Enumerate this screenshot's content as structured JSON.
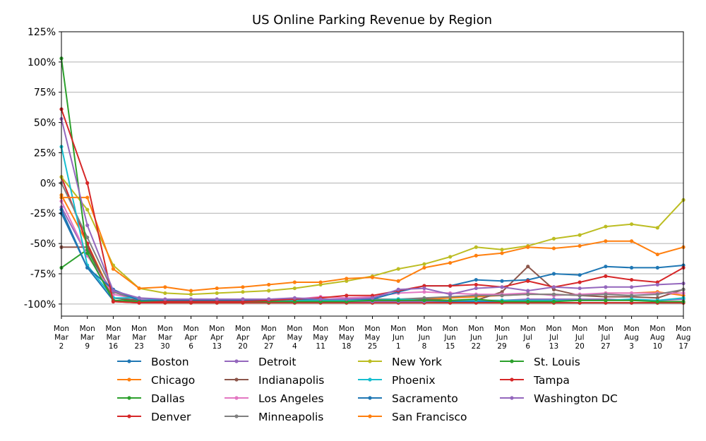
{
  "chart_data": {
    "type": "line",
    "title": "US Online Parking Revenue by Region",
    "xlabel": "",
    "ylabel": "",
    "ylim": [
      -110,
      125
    ],
    "y_ticks": [
      "125%",
      "100%",
      "75%",
      "50%",
      "25%",
      "0%",
      "-25%",
      "-50%",
      "-75%",
      "-100%"
    ],
    "y_tick_values": [
      125,
      100,
      75,
      50,
      25,
      0,
      -25,
      -50,
      -75,
      -100
    ],
    "grid": "horizontal",
    "legend_placement": "bottom",
    "categories": [
      [
        "Mon",
        "Mar",
        "2"
      ],
      [
        "Mon",
        "Mar",
        "9"
      ],
      [
        "Mon",
        "Mar",
        "16"
      ],
      [
        "Mon",
        "Mar",
        "23"
      ],
      [
        "Mon",
        "Mar",
        "30"
      ],
      [
        "Mon",
        "Apr",
        "6"
      ],
      [
        "Mon",
        "Apr",
        "13"
      ],
      [
        "Mon",
        "Apr",
        "20"
      ],
      [
        "Mon",
        "Apr",
        "27"
      ],
      [
        "Mon",
        "May",
        "4"
      ],
      [
        "Mon",
        "May",
        "11"
      ],
      [
        "Mon",
        "May",
        "18"
      ],
      [
        "Mon",
        "May",
        "25"
      ],
      [
        "Mon",
        "Jun",
        "1"
      ],
      [
        "Mon",
        "Jun",
        "8"
      ],
      [
        "Mon",
        "Jun",
        "15"
      ],
      [
        "Mon",
        "Jun",
        "22"
      ],
      [
        "Mon",
        "Jun",
        "29"
      ],
      [
        "Mon",
        "Jul",
        "6"
      ],
      [
        "Mon",
        "Jul",
        "13"
      ],
      [
        "Mon",
        "Jul",
        "20"
      ],
      [
        "Mon",
        "Jul",
        "27"
      ],
      [
        "Mon",
        "Aug",
        "3"
      ],
      [
        "Mon",
        "Aug",
        "10"
      ],
      [
        "Mon",
        "Aug",
        "17"
      ]
    ],
    "series": [
      {
        "name": "Boston",
        "color": "#1f77b4",
        "values": [
          -25,
          -70,
          -97,
          -98,
          -98,
          -98,
          -98,
          -98,
          -98,
          -98,
          -98,
          -98,
          -98,
          -98,
          -98,
          -98,
          -98,
          -98,
          -98,
          -99,
          -99,
          -99,
          -99,
          -99,
          -99
        ]
      },
      {
        "name": "Chicago",
        "color": "#ff7f0e",
        "values": [
          -10,
          -50,
          -95,
          -97,
          -98,
          -98,
          -98,
          -98,
          -97,
          -97,
          -97,
          -97,
          -96,
          -96,
          -96,
          -95,
          -94,
          -93,
          -92,
          -92,
          -93,
          -91,
          -91,
          -90,
          -93
        ]
      },
      {
        "name": "Dallas",
        "color": "#2ca02c",
        "values": [
          -70,
          -55,
          -95,
          -98,
          -99,
          -99,
          -99,
          -99,
          -99,
          -99,
          -99,
          -99,
          -99,
          -99,
          -99,
          -99,
          -99,
          -99,
          -99,
          -99,
          -99,
          -99,
          -99,
          -99,
          -99
        ]
      },
      {
        "name": "Denver",
        "color": "#d62728",
        "values": [
          5,
          -50,
          -98,
          -99,
          -99,
          -99,
          -99,
          -99,
          -99,
          -99,
          -99,
          -99,
          -99,
          -99,
          -99,
          -99,
          -99,
          -99,
          -99,
          -99,
          -99,
          -99,
          -99,
          -99,
          -99
        ]
      },
      {
        "name": "Detroit",
        "color": "#9467bd",
        "values": [
          -20,
          -60,
          -90,
          -97,
          -98,
          -98,
          -98,
          -98,
          -98,
          -98,
          -98,
          -98,
          -98,
          -98,
          -98,
          -97,
          -97,
          -97,
          -96,
          -96,
          -96,
          -96,
          -97,
          -97,
          -96
        ]
      },
      {
        "name": "Indianapolis",
        "color": "#8c564b",
        "values": [
          -53,
          -53,
          -95,
          -97,
          -97,
          -97,
          -97,
          -96,
          -96,
          -96,
          -96,
          -96,
          -96,
          -96,
          -96,
          -97,
          -97,
          -90,
          -69,
          -88,
          -93,
          -94,
          -94,
          -95,
          -88
        ]
      },
      {
        "name": "Los Angeles",
        "color": "#e377c2",
        "values": [
          -15,
          -60,
          -92,
          -96,
          -97,
          -97,
          -96,
          -96,
          -96,
          -96,
          -94,
          -95,
          -94,
          -91,
          -90,
          -91,
          -92,
          -92,
          -91,
          -93,
          -92,
          -91,
          -91,
          -91,
          -91
        ]
      },
      {
        "name": "Minneapolis",
        "color": "#7f7f7f",
        "values": [
          0,
          -45,
          -90,
          -97,
          -98,
          -98,
          -98,
          -98,
          -98,
          -97,
          -97,
          -97,
          -96,
          -96,
          -95,
          -94,
          -93,
          -93,
          -92,
          -92,
          -93,
          -92,
          -93,
          -92,
          -88
        ]
      },
      {
        "name": "New York",
        "color": "#bcbd22",
        "values": [
          5,
          -22,
          -68,
          -87,
          -91,
          -92,
          -91,
          -90,
          -89,
          -87,
          -84,
          -81,
          -77,
          -71,
          -67,
          -61,
          -53,
          -55,
          -52,
          -46,
          -43,
          -36,
          -34,
          -37,
          -14
        ]
      },
      {
        "name": "Phoenix",
        "color": "#17becf",
        "values": [
          30,
          -68,
          -95,
          -95,
          -97,
          -97,
          -97,
          -97,
          -97,
          -97,
          -97,
          -97,
          -97,
          -96,
          -97,
          -97,
          -97,
          -97,
          -97,
          -97,
          -97,
          -97,
          -96,
          -97,
          -95
        ]
      },
      {
        "name": "Sacramento",
        "color": "#1f77b4",
        "values": [
          -22,
          -70,
          -88,
          -97,
          -97,
          -97,
          -97,
          -97,
          -97,
          -96,
          -96,
          -96,
          -96,
          -90,
          -85,
          -85,
          -80,
          -81,
          -80,
          -75,
          -76,
          -69,
          -70,
          -70,
          -68
        ]
      },
      {
        "name": "San Francisco",
        "color": "#ff7f0e",
        "values": [
          -12,
          -12,
          -71,
          -87,
          -86,
          -89,
          -87,
          -86,
          -84,
          -82,
          -82,
          -79,
          -78,
          -81,
          -70,
          -66,
          -60,
          -58,
          -53,
          -54,
          -52,
          -48,
          -48,
          -59,
          -53
        ]
      },
      {
        "name": "St. Louis",
        "color": "#2ca02c",
        "values": [
          103,
          -58,
          -97,
          -98,
          -98,
          -98,
          -98,
          -98,
          -98,
          -98,
          -98,
          -98,
          -97,
          -97,
          -97,
          -97,
          -96,
          -98,
          -98,
          -98,
          -97,
          -97,
          -97,
          -98,
          -98
        ]
      },
      {
        "name": "Tampa",
        "color": "#d62728",
        "values": [
          61,
          0,
          -98,
          -99,
          -98,
          -98,
          -98,
          -98,
          -97,
          -96,
          -95,
          -93,
          -93,
          -89,
          -85,
          -85,
          -84,
          -86,
          -81,
          -86,
          -82,
          -77,
          -80,
          -82,
          -70
        ]
      },
      {
        "name": "Washington DC",
        "color": "#9467bd",
        "values": [
          53,
          -35,
          -89,
          -95,
          -96,
          -96,
          -96,
          -96,
          -96,
          -95,
          -96,
          -96,
          -95,
          -88,
          -87,
          -92,
          -87,
          -86,
          -89,
          -86,
          -87,
          -86,
          -86,
          -84,
          -83
        ]
      }
    ]
  }
}
